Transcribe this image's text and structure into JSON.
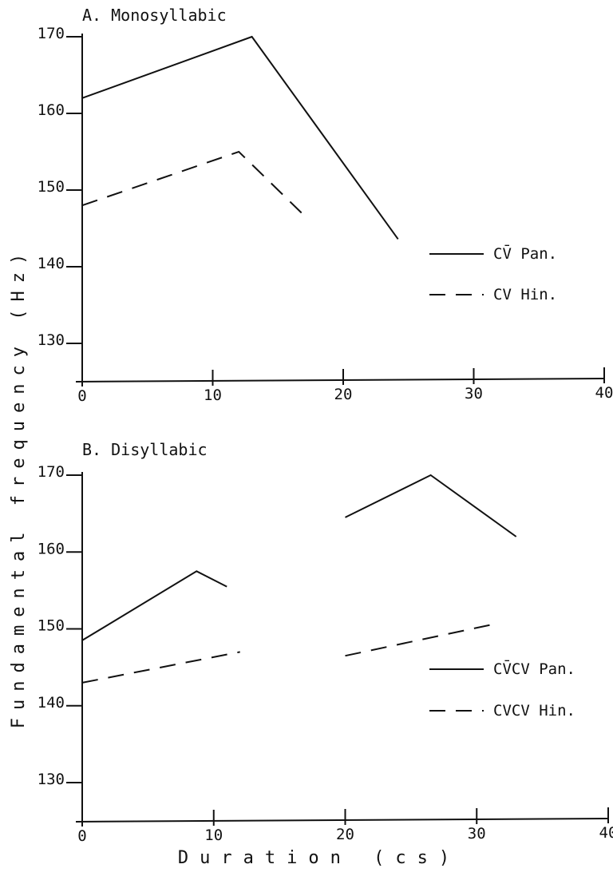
{
  "chart_data": {
    "type": "line",
    "ylabel": "Fundamental frequency (Hz)",
    "xlabel": "Duration (cs)",
    "panels": [
      {
        "title": "A. Monosyllabic",
        "xlim": [
          0,
          40
        ],
        "xticks": [
          "0",
          "10",
          "20",
          "30",
          "40"
        ],
        "ylim": [
          127,
          170
        ],
        "yticks": [
          "170",
          "160",
          "150",
          "140",
          "130"
        ],
        "legend_position": "right",
        "series": [
          {
            "name": "CV̄ Pan.",
            "style": "solid",
            "segments": [
              [
                [
                  0,
                  162
                ],
                [
                  13,
                  170
                ],
                [
                  24.2,
                  143.6
                ]
              ]
            ]
          },
          {
            "name": "CV Hin.",
            "style": "dashed",
            "segments": [
              [
                [
                  0,
                  148
                ],
                [
                  12,
                  155
                ],
                [
                  17.3,
                  146.2
                ]
              ]
            ]
          }
        ]
      },
      {
        "title": "B. Disyllabic",
        "xlim": [
          0,
          40
        ],
        "xticks": [
          "0",
          "10",
          "20",
          "30",
          "40"
        ],
        "ylim": [
          126,
          170
        ],
        "yticks": [
          "170",
          "160",
          "150",
          "140",
          "130"
        ],
        "legend_position": "right",
        "series": [
          {
            "name": "CV̄CV Pan.",
            "style": "solid",
            "segments": [
              [
                [
                  0,
                  148.5
                ],
                [
                  8.7,
                  157.5
                ],
                [
                  11,
                  155.5
                ]
              ],
              [
                [
                  20,
                  164.5
                ],
                [
                  26.5,
                  170
                ],
                [
                  33,
                  162
                ]
              ]
            ]
          },
          {
            "name": "CVCV Hin.",
            "style": "dashed",
            "segments": [
              [
                [
                  0,
                  143
                ],
                [
                  12,
                  147
                ]
              ],
              [
                [
                  20,
                  146.5
                ],
                [
                  31,
                  150.5
                ]
              ]
            ]
          }
        ]
      }
    ]
  }
}
